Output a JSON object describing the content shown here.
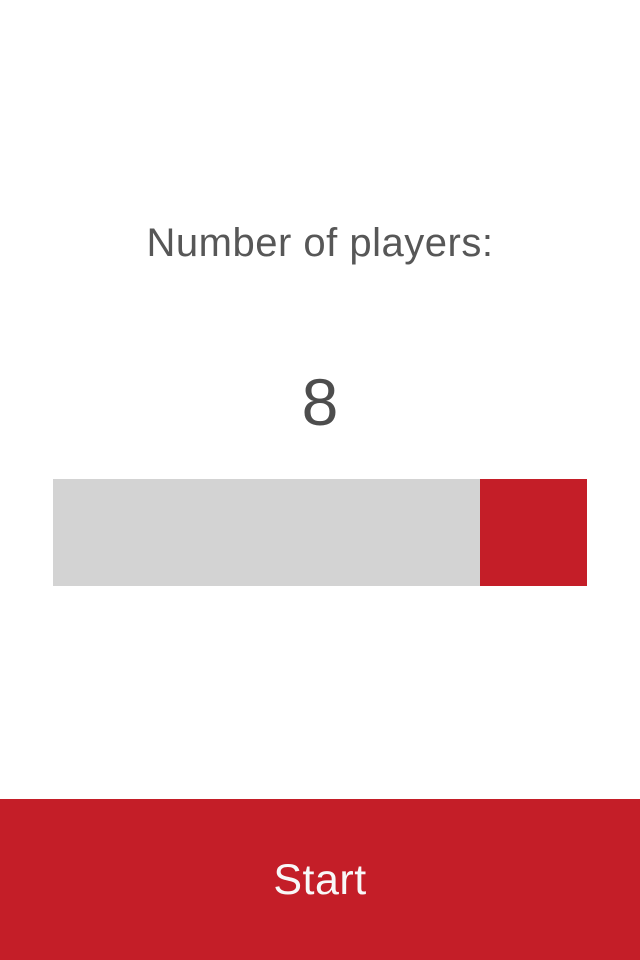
{
  "screen": {
    "background": "#ffffff"
  },
  "setup": {
    "label": "Number of players:",
    "value": "8"
  },
  "slider": {
    "value": "8",
    "track_color": "#d3d3d3",
    "thumb_color": "#c41e28",
    "thumb_position": "right-end"
  },
  "start": {
    "label": "Start",
    "background_color": "#c41e28",
    "text_color": "#f8f8f8"
  },
  "colors": {
    "accent_red": "#c41e28",
    "track_gray": "#d3d3d3",
    "label_gray": "#575757",
    "value_gray": "#4d4d4d",
    "background": "#ffffff"
  }
}
